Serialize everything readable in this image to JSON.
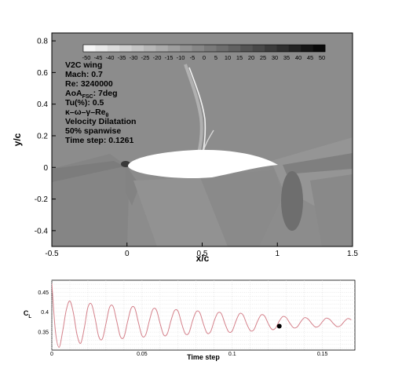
{
  "chart_data": [
    {
      "type": "heatmap",
      "xlabel": "x/c",
      "ylabel": "y/c",
      "xlim": [
        -0.5,
        1.5
      ],
      "ylim": [
        -0.5,
        0.85
      ],
      "xticks": [
        "-0.5",
        "0",
        "0.5",
        "1",
        "1.5"
      ],
      "yticks": [
        "-0.4",
        "-0.2",
        "0",
        "0.2",
        "0.4",
        "0.6",
        "0.8"
      ],
      "colorbar_ticks": [
        "-50",
        "-45",
        "-40",
        "-35",
        "-30",
        "-25",
        "-20",
        "-15",
        "-10",
        "-5",
        "0",
        "5",
        "10",
        "15",
        "20",
        "25",
        "30",
        "35",
        "40",
        "45",
        "50"
      ],
      "colorbar_range": [
        -50,
        50
      ],
      "annotations": {
        "case": "V2C wing",
        "mach": "Mach: 0.7",
        "re": "Re: 3240000",
        "aoa_main": "AoA",
        "aoa_sub": "FSC",
        "aoa_value": ": 7deg",
        "tu": "Tu(%): 0.5",
        "model_main": "κ–ω–γ–Re",
        "model_sub": "θ",
        "variable": "Velocity Dilatation",
        "section": "50% spanwise",
        "time_step": "Time step: 0.1261"
      },
      "colors": {
        "background_field": "#8c8c8c",
        "airfoil": "#ffffff"
      }
    },
    {
      "type": "line",
      "xlabel": "Time step",
      "ylabel_main": "C",
      "ylabel_sub": "L",
      "xlim": [
        0,
        0.168
      ],
      "ylim": [
        0.305,
        0.48
      ],
      "xticks": [
        {
          "value": 0,
          "label": "0"
        },
        {
          "value": 0.05,
          "label": "0.05"
        },
        {
          "value": 0.1,
          "label": "0.1"
        },
        {
          "value": 0.15,
          "label": "0.15"
        }
      ],
      "yticks": [
        {
          "value": 0.35,
          "label": "0.35"
        },
        {
          "value": 0.4,
          "label": "0.4"
        },
        {
          "value": 0.45,
          "label": "0.45"
        }
      ],
      "grid": true,
      "series": [
        {
          "color": "#d4808a",
          "x": [
            0,
            0.002,
            0.004,
            0.006,
            0.008,
            0.01,
            0.012,
            0.014,
            0.016,
            0.018,
            0.02,
            0.022,
            0.024,
            0.026,
            0.028,
            0.03,
            0.032,
            0.034,
            0.036,
            0.038,
            0.04,
            0.042,
            0.044,
            0.046,
            0.048,
            0.05,
            0.052,
            0.054,
            0.056,
            0.058,
            0.06,
            0.062,
            0.064,
            0.066,
            0.068,
            0.07,
            0.072,
            0.074,
            0.076,
            0.078,
            0.08,
            0.082,
            0.084,
            0.086,
            0.088,
            0.09,
            0.092,
            0.094,
            0.096,
            0.098,
            0.1,
            0.102,
            0.104,
            0.106,
            0.108,
            0.11,
            0.112,
            0.114,
            0.116,
            0.118,
            0.12,
            0.122,
            0.124,
            0.126,
            0.128,
            0.13,
            0.132,
            0.134,
            0.136,
            0.138,
            0.14,
            0.142,
            0.144,
            0.146,
            0.148,
            0.15,
            0.152,
            0.154,
            0.156,
            0.158,
            0.16,
            0.162,
            0.164,
            0.166
          ],
          "y": [
            0.472,
            0.352,
            0.312,
            0.352,
            0.405,
            0.428,
            0.397,
            0.343,
            0.322,
            0.36,
            0.412,
            0.42,
            0.384,
            0.339,
            0.333,
            0.371,
            0.412,
            0.414,
            0.377,
            0.339,
            0.338,
            0.376,
            0.41,
            0.41,
            0.374,
            0.341,
            0.343,
            0.377,
            0.407,
            0.405,
            0.372,
            0.343,
            0.346,
            0.378,
            0.404,
            0.402,
            0.371,
            0.346,
            0.348,
            0.378,
            0.401,
            0.399,
            0.371,
            0.348,
            0.351,
            0.378,
            0.398,
            0.396,
            0.371,
            0.351,
            0.353,
            0.377,
            0.396,
            0.393,
            0.371,
            0.354,
            0.356,
            0.377,
            0.393,
            0.39,
            0.371,
            0.357,
            0.36,
            0.377,
            0.389,
            0.386,
            0.372,
            0.361,
            0.363,
            0.376,
            0.386,
            0.383,
            0.372,
            0.363,
            0.365,
            0.376,
            0.385,
            0.382,
            0.372,
            0.364,
            0.366,
            0.376,
            0.384,
            0.381
          ]
        }
      ],
      "marker": {
        "x": 0.1261,
        "y": 0.365
      }
    }
  ]
}
